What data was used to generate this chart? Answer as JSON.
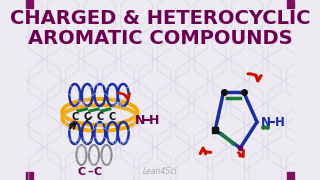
{
  "title_line1": "CHARGED & HETEROCYCLIC",
  "title_line2": "AROMATIC COMPOUNDS",
  "title_color": "#6B0050",
  "bg_color": "#EDEAF2",
  "watermark": "Leah4Sci",
  "corner_color": "#7B1060",
  "hex_color": "#D5CFE3",
  "orange": "#F5A800",
  "blue": "#1B2EA0",
  "red": "#CC1100",
  "green": "#1A7A30",
  "gray": "#888888",
  "black": "#111111",
  "purple": "#6B0050"
}
